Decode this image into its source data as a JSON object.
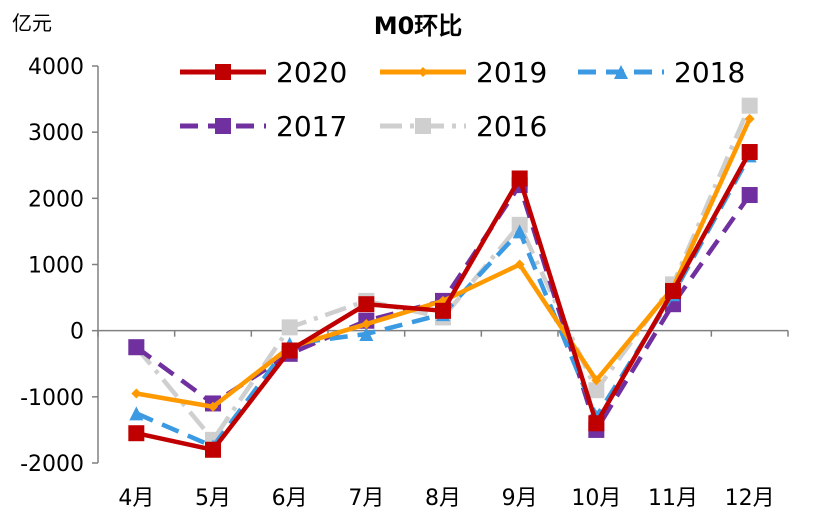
{
  "chart_data": {
    "type": "line",
    "title": "M0环比",
    "ylabel": "亿元",
    "xlabel": "",
    "categories": [
      "4月",
      "5月",
      "6月",
      "7月",
      "8月",
      "9月",
      "10月",
      "11月",
      "12月"
    ],
    "ylim": [
      -2000,
      4000
    ],
    "yticks": [
      -2000,
      -1000,
      0,
      1000,
      2000,
      3000,
      4000
    ],
    "ytick_labels": [
      "-2000",
      "-1000",
      "0",
      "1000",
      "2000",
      "3000",
      "4000"
    ],
    "legend_position": "top",
    "series": [
      {
        "name": "2020",
        "color": "#c00000",
        "dash": "solid",
        "marker": "square",
        "values": [
          -1550,
          -1800,
          -300,
          400,
          300,
          2300,
          -1400,
          600,
          2700
        ]
      },
      {
        "name": "2019",
        "color": "#ff9900",
        "dash": "solid",
        "marker": "diamond",
        "values": [
          -950,
          -1150,
          -250,
          100,
          450,
          1000,
          -750,
          650,
          3200
        ]
      },
      {
        "name": "2018",
        "color": "#3b9ae1",
        "dash": "dash",
        "marker": "triangle",
        "values": [
          -1250,
          -1750,
          -200,
          -50,
          250,
          1500,
          -1300,
          550,
          2650
        ]
      },
      {
        "name": "2017",
        "color": "#7030a0",
        "dash": "dash",
        "marker": "square",
        "values": [
          -250,
          -1100,
          -350,
          150,
          450,
          2200,
          -1500,
          400,
          2050
        ]
      },
      {
        "name": "2016",
        "color": "#cfcfcf",
        "dash": "dashdot",
        "marker": "square",
        "values": [
          -250,
          -1650,
          50,
          450,
          200,
          1600,
          -900,
          700,
          3400
        ]
      }
    ]
  }
}
